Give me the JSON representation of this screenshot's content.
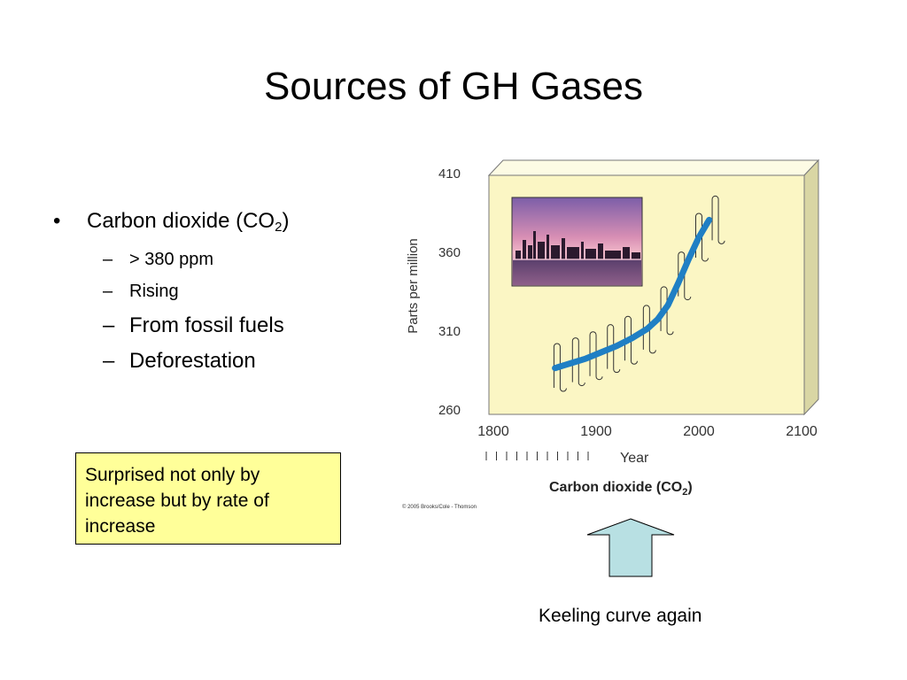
{
  "slide": {
    "title": "Sources of GH Gases",
    "bullet_marker": "•",
    "bullet_main_prefix": "Carbon dioxide (CO",
    "bullet_main_sub": "2",
    "bullet_main_suffix": ")",
    "sub_marker": "–",
    "sub_bullets": [
      "> 380 ppm",
      "Rising",
      "From fossil fuels",
      "Deforestation"
    ],
    "callout": "Surprised not only by increase but by rate of increase",
    "arrow_caption": "Keeling curve again"
  },
  "chart_data": {
    "type": "line",
    "ylabel": "Parts per million",
    "xlabel": "Year",
    "caption_prefix": "Carbon dioxide (CO",
    "caption_sub": "2",
    "caption_suffix": ")",
    "credit": "© 2005 Brooks/Cole - Thomson",
    "xlim": [
      1800,
      2100
    ],
    "ylim": [
      260,
      410
    ],
    "xticks": [
      1800,
      1900,
      2000,
      2100
    ],
    "yticks": [
      260,
      310,
      360,
      410
    ],
    "x": [
      1860,
      1875,
      1890,
      1905,
      1920,
      1935,
      1950,
      1960,
      1970,
      1980,
      1990,
      2000,
      2010
    ],
    "y": [
      286,
      289,
      292,
      296,
      300,
      305,
      311,
      317,
      326,
      340,
      355,
      369,
      380
    ],
    "oscillation_columns": [
      1862,
      1880,
      1897,
      1914,
      1931,
      1949,
      1966,
      1983,
      2000,
      2016
    ],
    "colors": {
      "panel": "#fbf6c4",
      "panel_top": "#fdfbe4",
      "panel_side": "#d9d6a4",
      "curve": "#1f7fc4",
      "arrow": "#b8e0e3"
    }
  }
}
